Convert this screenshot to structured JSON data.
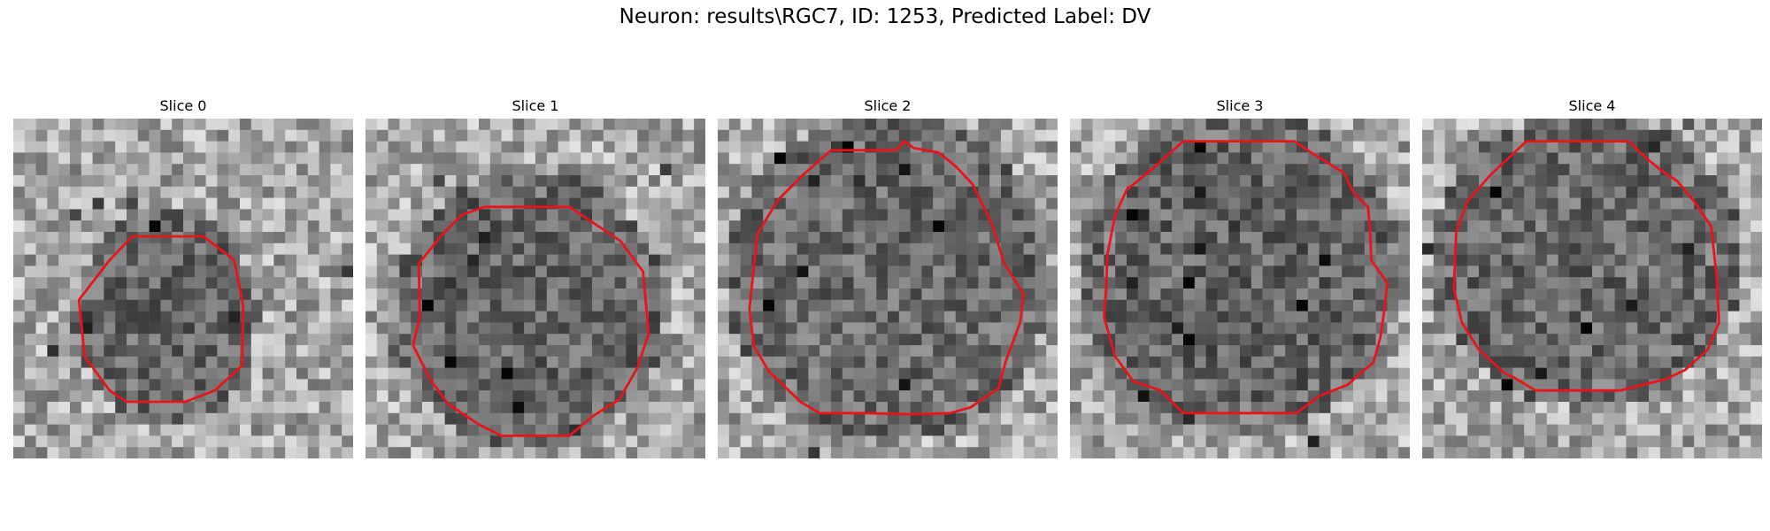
{
  "figure": {
    "title": "Neuron: results\\RGC7, ID: 1253, Predicted Label: DV"
  },
  "panels": [
    {
      "title": "Slice 0",
      "image": "grayscale microscopy patch with red cell contour"
    },
    {
      "title": "Slice 1",
      "image": "grayscale microscopy patch with red cell contour"
    },
    {
      "title": "Slice 2",
      "image": "grayscale microscopy patch with red cell contour"
    },
    {
      "title": "Slice 3",
      "image": "grayscale microscopy patch with red cell contour"
    },
    {
      "title": "Slice 4",
      "image": "grayscale microscopy patch with red cell contour"
    }
  ],
  "contour_color": "#e8141b"
}
